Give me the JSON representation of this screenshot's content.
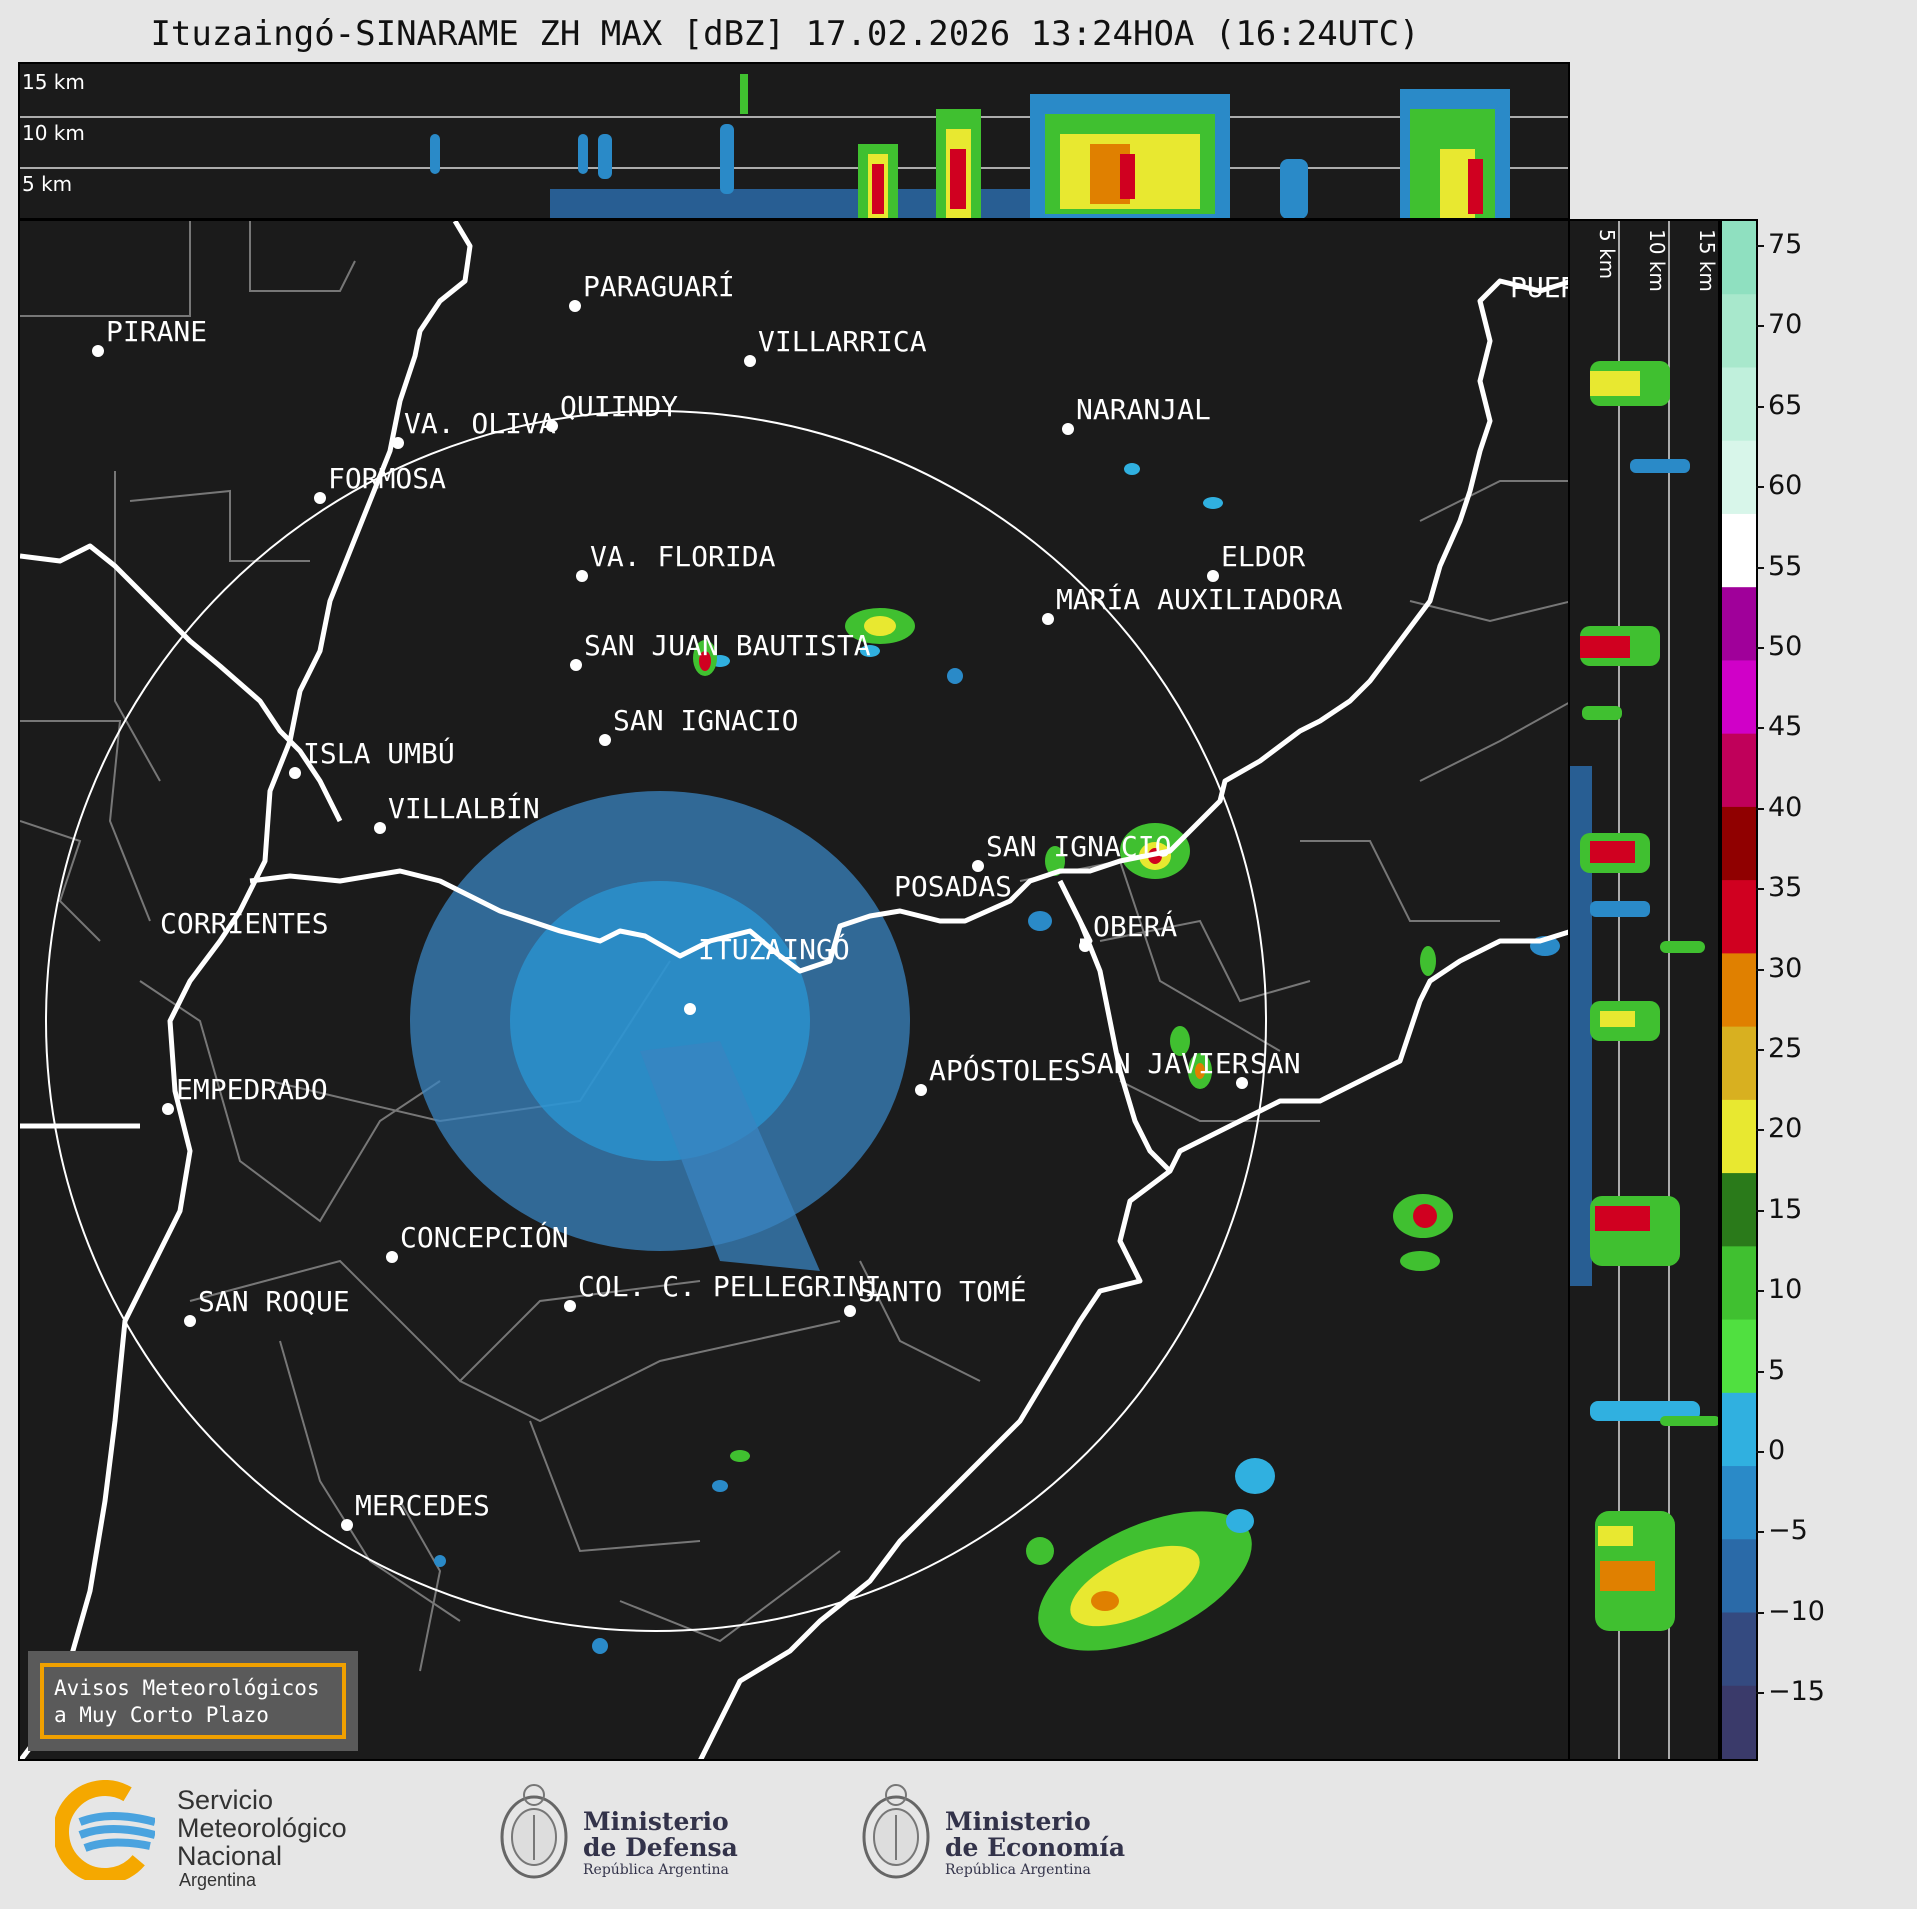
{
  "title": "Ituzaingó-SINARAME ZH MAX [dBZ] 17.02.2026 13:24HOA (16:24UTC)",
  "top_panel": {
    "altitude_labels": [
      "15 km",
      "10 km",
      "5 km"
    ]
  },
  "side_panel": {
    "altitude_labels": [
      "5 km",
      "10 km",
      "15 km"
    ]
  },
  "map": {
    "radar_site": "ITUZAINGÓ",
    "cities": [
      "PIRANE",
      "PARAGUARÍ",
      "VILLARRICA",
      "QUIINDY",
      "VA. OLIVA",
      "FORMOSA",
      "NARANJAL",
      "VA. FLORIDA",
      "ELDOR",
      "MARÍA AUXILIADORA",
      "SAN JUAN BAUTISTA",
      "SAN IGNACIO",
      "ISLA UMBÚ",
      "VILLALBÍN",
      "SAN IGNACIO",
      "POSADAS",
      "CORRIENTES",
      "OBERÁ",
      "APÓSTOLES",
      "SAN JAVIER",
      "SAN",
      "EMPEDRADO",
      "CONCEPCIÓN",
      "COL. C. PELLEGRINI",
      "SANTO TOMÉ",
      "SAN ROQUE",
      "MERCEDES",
      "PUER"
    ]
  },
  "colorbar": {
    "unit": "dBZ",
    "ticks": [
      "75",
      "70",
      "65",
      "60",
      "55",
      "50",
      "45",
      "40",
      "35",
      "30",
      "25",
      "20",
      "15",
      "10",
      "5",
      "0",
      "−5",
      "−10",
      "−15"
    ],
    "colors": [
      "#8fe0c0",
      "#a8e8cc",
      "#c0f0dc",
      "#d8f6ea",
      "#ffffff",
      "#a0009a",
      "#d000c8",
      "#c0005a",
      "#900000",
      "#d00020",
      "#e08000",
      "#d8b020",
      "#e8e830",
      "#2a7a1a",
      "#40c030",
      "#50e040",
      "#30b0e0",
      "#2a8ac8",
      "#2a6aa8",
      "#344a80",
      "#3a3a6a"
    ]
  },
  "avisos": {
    "line1": "Avisos Meteorológicos",
    "line2": "a Muy Corto Plazo"
  },
  "logos": {
    "smn": {
      "line1": "Servicio",
      "line2": "Meteorológico",
      "line3": "Nacional",
      "line4": "Argentina"
    },
    "defensa": {
      "line1": "Ministerio",
      "line2": "de Defensa",
      "line3": "República Argentina"
    },
    "economia": {
      "line1": "Ministerio",
      "line2": "de Economía",
      "line3": "República Argentina"
    }
  }
}
